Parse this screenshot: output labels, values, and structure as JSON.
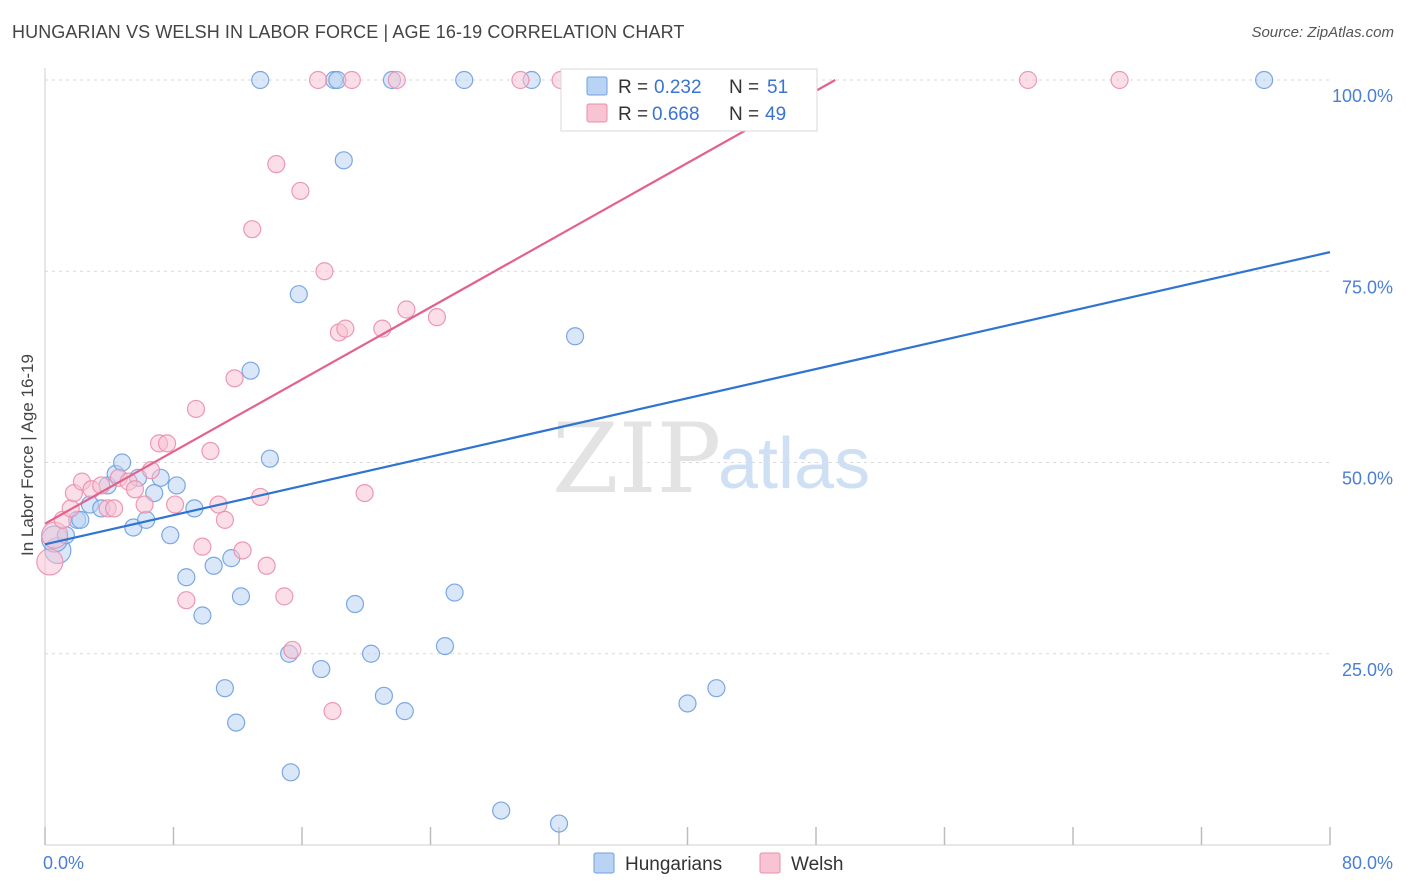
{
  "header": {
    "title": "HUNGARIAN VS WELSH IN LABOR FORCE | AGE 16-19 CORRELATION CHART",
    "source": "Source: ZipAtlas.com"
  },
  "watermark": {
    "zip": "ZIP",
    "atlas": "atlas"
  },
  "legend": {
    "rows": [
      {
        "r_label": "R = ",
        "r_value": "0.232",
        "n_label": "N = ",
        "n_value": "51"
      },
      {
        "r_label": "R = ",
        "r_value": "0.668",
        "n_label": "N = ",
        "n_value": "49"
      }
    ]
  },
  "bottom_legend": {
    "series0": "Hungarians",
    "series1": "Welsh"
  },
  "colors": {
    "hungarians_fill": "#b9d3f4",
    "hungarians_stroke": "#6f9fe0",
    "hungarians_line": "#2f74d0",
    "welsh_fill": "#f8c3d3",
    "welsh_stroke": "#ea8fac",
    "welsh_line": "#e2628c",
    "grid": "#d9d9d9",
    "tick_text": "#4a7fd4"
  },
  "chart_data": {
    "type": "scatter",
    "title": "HUNGARIAN VS WELSH IN LABOR FORCE | AGE 16-19 CORRELATION CHART",
    "xlabel": "",
    "ylabel": "In Labor Force | Age 16-19",
    "xlim": [
      0,
      80
    ],
    "ylim": [
      0,
      104
    ],
    "x_tick_labels": [
      "0.0%",
      "80.0%"
    ],
    "y_ticks": [
      25,
      50,
      75,
      100
    ],
    "y_tick_labels": [
      "25.0%",
      "50.0%",
      "75.0%",
      "100.0%"
    ],
    "grid": true,
    "legend_position": "top-center",
    "series": [
      {
        "name": "Hungarians",
        "r": 0.232,
        "n": 51,
        "trend": {
          "x": [
            0,
            80
          ],
          "y": [
            39.3,
            77.5
          ]
        },
        "points": [
          [
            0.8,
            38.5
          ],
          [
            0.6,
            40
          ],
          [
            1.3,
            40.5
          ],
          [
            2.0,
            42.5
          ],
          [
            2.2,
            42.5
          ],
          [
            2.8,
            44.5
          ],
          [
            3.5,
            44
          ],
          [
            3.9,
            47
          ],
          [
            4.4,
            48.5
          ],
          [
            4.8,
            50
          ],
          [
            5.5,
            41.5
          ],
          [
            5.8,
            48
          ],
          [
            6.3,
            42.5
          ],
          [
            6.8,
            46
          ],
          [
            7.2,
            48
          ],
          [
            7.8,
            40.5
          ],
          [
            8.2,
            47
          ],
          [
            8.8,
            35
          ],
          [
            9.3,
            44
          ],
          [
            9.8,
            30
          ],
          [
            10.5,
            36.5
          ],
          [
            11.2,
            20.5
          ],
          [
            11.6,
            37.5
          ],
          [
            11.9,
            16
          ],
          [
            12.2,
            32.5
          ],
          [
            12.8,
            62
          ],
          [
            13.4,
            100
          ],
          [
            14.0,
            50.5
          ],
          [
            15.2,
            25
          ],
          [
            15.3,
            9.5
          ],
          [
            15.8,
            72
          ],
          [
            17.2,
            23
          ],
          [
            18.0,
            100
          ],
          [
            18.2,
            100
          ],
          [
            18.6,
            89.5
          ],
          [
            19.3,
            31.5
          ],
          [
            20.3,
            25
          ],
          [
            21.1,
            19.5
          ],
          [
            21.6,
            100
          ],
          [
            22.4,
            17.5
          ],
          [
            24.9,
            26
          ],
          [
            25.5,
            33
          ],
          [
            26.1,
            100
          ],
          [
            28.4,
            4.5
          ],
          [
            30.3,
            100
          ],
          [
            32.0,
            2.8
          ],
          [
            33.0,
            66.5
          ],
          [
            40.0,
            18.5
          ],
          [
            41.1,
            100
          ],
          [
            41.8,
            20.5
          ],
          [
            75.9,
            100
          ]
        ]
      },
      {
        "name": "Welsh",
        "r": 0.668,
        "n": 49,
        "trend": {
          "x": [
            0,
            49.2
          ],
          "y": [
            42,
            100
          ]
        },
        "points": [
          [
            0.3,
            37
          ],
          [
            0.6,
            40.5
          ],
          [
            1.1,
            42.5
          ],
          [
            1.6,
            44
          ],
          [
            1.8,
            46
          ],
          [
            2.3,
            47.5
          ],
          [
            2.9,
            46.5
          ],
          [
            3.5,
            47
          ],
          [
            3.9,
            44
          ],
          [
            4.3,
            44
          ],
          [
            4.6,
            48
          ],
          [
            5.2,
            47.5
          ],
          [
            5.6,
            46.5
          ],
          [
            6.2,
            44.5
          ],
          [
            6.6,
            49
          ],
          [
            7.1,
            52.5
          ],
          [
            7.6,
            52.5
          ],
          [
            8.1,
            44.5
          ],
          [
            8.8,
            32
          ],
          [
            9.4,
            57
          ],
          [
            9.8,
            39
          ],
          [
            10.3,
            51.5
          ],
          [
            10.8,
            44.5
          ],
          [
            11.2,
            42.5
          ],
          [
            11.8,
            61
          ],
          [
            12.3,
            38.5
          ],
          [
            12.9,
            80.5
          ],
          [
            13.4,
            45.5
          ],
          [
            13.8,
            36.5
          ],
          [
            14.4,
            89
          ],
          [
            14.9,
            32.5
          ],
          [
            15.4,
            25.5
          ],
          [
            15.9,
            85.5
          ],
          [
            17.0,
            100
          ],
          [
            17.4,
            75
          ],
          [
            17.9,
            17.5
          ],
          [
            18.3,
            67
          ],
          [
            18.7,
            67.5
          ],
          [
            19.1,
            100
          ],
          [
            19.9,
            46
          ],
          [
            21.0,
            67.5
          ],
          [
            21.9,
            100
          ],
          [
            22.5,
            70
          ],
          [
            24.4,
            69
          ],
          [
            29.6,
            100
          ],
          [
            32.1,
            100
          ],
          [
            41.4,
            100
          ],
          [
            61.2,
            100
          ],
          [
            66.9,
            100
          ]
        ]
      }
    ]
  }
}
